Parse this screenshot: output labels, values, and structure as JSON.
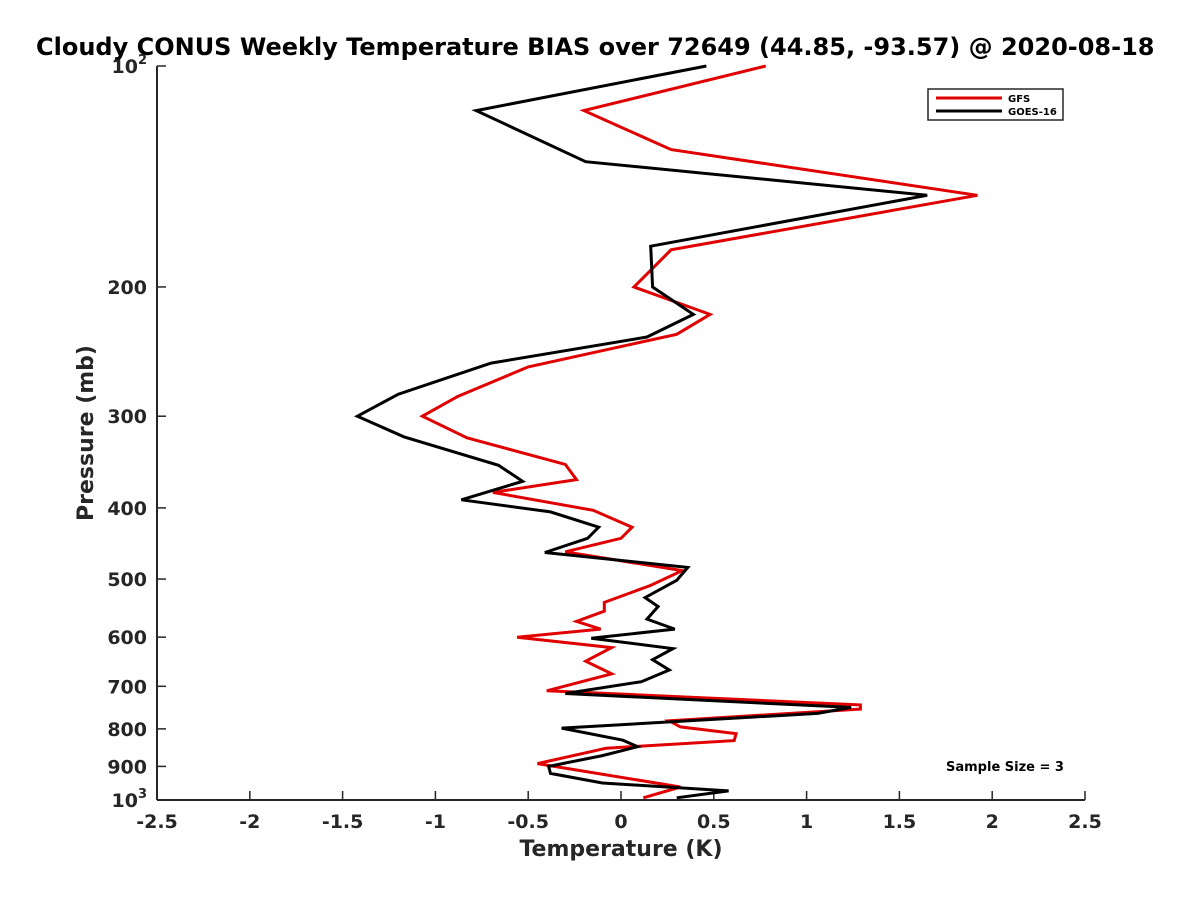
{
  "chart_data": {
    "type": "line",
    "title": "Cloudy CONUS Weekly Temperature BIAS over 72649 (44.85, -93.57) @ 2020-08-18",
    "xlabel": "Temperature (K)",
    "ylabel": "Pressure (mb)",
    "xlim": [
      -2.5,
      2.5
    ],
    "ylim": [
      1000,
      100
    ],
    "y_scale": "log",
    "y_reversed": true,
    "x_ticks": [
      "-2.5",
      "-2",
      "-1.5",
      "-1",
      "-0.5",
      "0",
      "0.5",
      "1",
      "1.5",
      "2",
      "2.5"
    ],
    "y_ticks": [
      {
        "value": 100,
        "base": "10",
        "exp": "2"
      },
      {
        "value": 200,
        "label": "200"
      },
      {
        "value": 300,
        "label": "300"
      },
      {
        "value": 400,
        "label": "400"
      },
      {
        "value": 500,
        "label": "500"
      },
      {
        "value": 600,
        "label": "600"
      },
      {
        "value": 700,
        "label": "700"
      },
      {
        "value": 800,
        "label": "800"
      },
      {
        "value": 900,
        "label": "900"
      },
      {
        "value": 1000,
        "base": "10",
        "exp": "3"
      }
    ],
    "grid": false,
    "legend_position": "top-right",
    "series": [
      {
        "name": "GFS",
        "color": "#e00000",
        "points": [
          [
            0.78,
            100
          ],
          [
            -0.2,
            115
          ],
          [
            0.27,
            130
          ],
          [
            1.92,
            150
          ],
          [
            0.27,
            178
          ],
          [
            0.07,
            200
          ],
          [
            0.48,
            218
          ],
          [
            0.3,
            232
          ],
          [
            -0.5,
            257
          ],
          [
            -0.88,
            282
          ],
          [
            -1.07,
            300
          ],
          [
            -0.83,
            321
          ],
          [
            -0.3,
            349
          ],
          [
            -0.24,
            366
          ],
          [
            -0.69,
            381
          ],
          [
            -0.15,
            403
          ],
          [
            0.06,
            425
          ],
          [
            0.0,
            440
          ],
          [
            -0.3,
            459
          ],
          [
            0.33,
            487
          ],
          [
            0.16,
            510
          ],
          [
            -0.09,
            538
          ],
          [
            -0.09,
            553
          ],
          [
            -0.24,
            571
          ],
          [
            -0.11,
            585
          ],
          [
            -0.56,
            600
          ],
          [
            -0.05,
            620
          ],
          [
            -0.19,
            647
          ],
          [
            -0.05,
            673
          ],
          [
            -0.4,
            710
          ],
          [
            1.29,
            742
          ],
          [
            1.29,
            752
          ],
          [
            0.26,
            780
          ],
          [
            0.32,
            795
          ],
          [
            0.62,
            812
          ],
          [
            0.61,
            830
          ],
          [
            -0.08,
            850
          ],
          [
            -0.45,
            892
          ],
          [
            0.32,
            960
          ],
          [
            0.12,
            993
          ]
        ]
      },
      {
        "name": "GOES-16",
        "color": "#000000",
        "points": [
          [
            0.46,
            100
          ],
          [
            -0.78,
            115
          ],
          [
            -0.19,
            135
          ],
          [
            1.65,
            150
          ],
          [
            0.16,
            176
          ],
          [
            0.17,
            200
          ],
          [
            0.39,
            218
          ],
          [
            0.14,
            234
          ],
          [
            -0.7,
            254
          ],
          [
            -1.2,
            280
          ],
          [
            -1.42,
            300
          ],
          [
            -1.17,
            320
          ],
          [
            -0.66,
            350
          ],
          [
            -0.53,
            368
          ],
          [
            -0.86,
            390
          ],
          [
            -0.38,
            405
          ],
          [
            -0.12,
            425
          ],
          [
            -0.18,
            440
          ],
          [
            -0.41,
            460
          ],
          [
            0.36,
            482
          ],
          [
            0.3,
            502
          ],
          [
            0.13,
            530
          ],
          [
            0.2,
            545
          ],
          [
            0.14,
            567
          ],
          [
            0.29,
            585
          ],
          [
            -0.16,
            602
          ],
          [
            0.28,
            622
          ],
          [
            0.17,
            644
          ],
          [
            0.26,
            665
          ],
          [
            0.11,
            690
          ],
          [
            -0.3,
            716
          ],
          [
            1.24,
            748
          ],
          [
            1.06,
            762
          ],
          [
            -0.32,
            798
          ],
          [
            0.01,
            829
          ],
          [
            0.09,
            846
          ],
          [
            -0.1,
            870
          ],
          [
            -0.39,
            900
          ],
          [
            -0.38,
            920
          ],
          [
            -0.1,
            948
          ],
          [
            0.58,
            972
          ],
          [
            0.3,
            993
          ]
        ]
      }
    ],
    "annotations": [
      "Sample Size = 3"
    ]
  }
}
